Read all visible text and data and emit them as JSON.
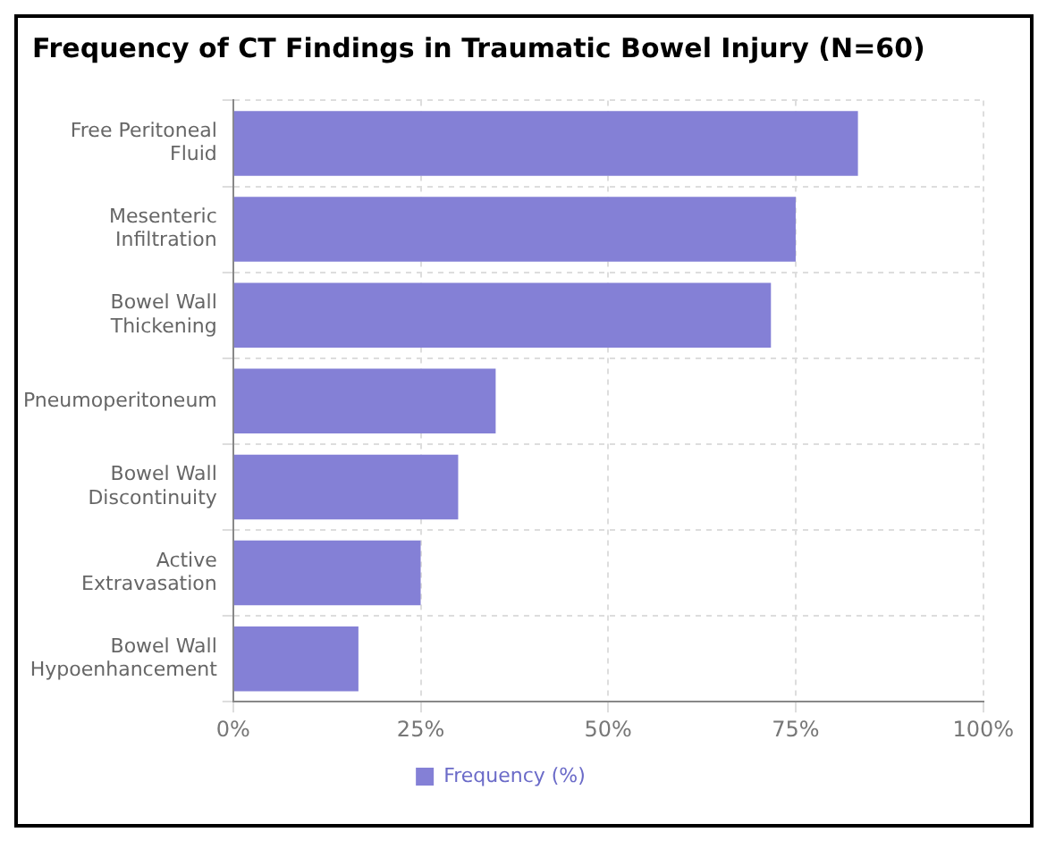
{
  "chart_data": {
    "type": "bar",
    "title": "Frequency of CT Findings in Traumatic Bowel Injury (N=60)",
    "orientation": "horizontal",
    "categories": [
      "Free Peritoneal Fluid",
      "Mesenteric Infiltration",
      "Bowel Wall Thickening",
      "Pneumoperitoneum",
      "Bowel Wall Discontinuity",
      "Active Extravasation",
      "Bowel Wall Hypoenhancement"
    ],
    "series": [
      {
        "name": "Frequency (%)",
        "color": "#8480d6",
        "values": [
          83.3,
          75,
          71.7,
          35,
          30,
          25,
          16.7
        ]
      }
    ],
    "xlim": [
      0,
      100
    ],
    "xticks": [
      {
        "value": 0,
        "label": "0%"
      },
      {
        "value": 25,
        "label": "25%"
      },
      {
        "value": 50,
        "label": "50%"
      },
      {
        "value": 75,
        "label": "75%"
      },
      {
        "value": 100,
        "label": "100%"
      }
    ],
    "grid": true,
    "legend": "bottom"
  }
}
